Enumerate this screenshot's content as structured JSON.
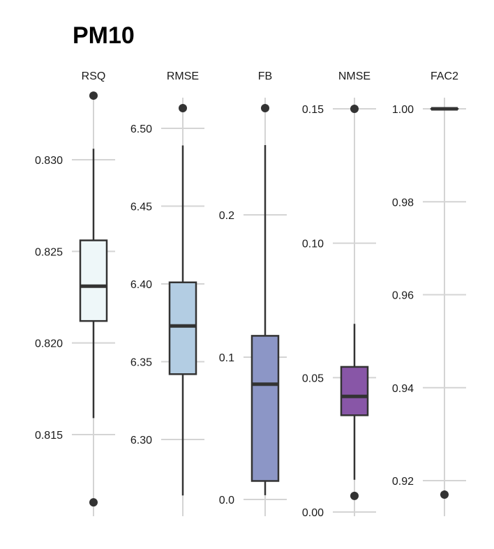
{
  "chart_data": {
    "type": "boxplot",
    "title": "PM10",
    "panels": [
      {
        "name": "RSQ",
        "ticks": [
          0.815,
          0.82,
          0.825,
          0.83
        ],
        "tick_labels": [
          "0.815",
          "0.820",
          "0.825",
          "0.830"
        ],
        "whisker_low": 0.8159,
        "q1": 0.8212,
        "median": 0.8231,
        "q3": 0.8256,
        "whisker_high": 0.8306,
        "outliers": [
          0.8113,
          0.8335
        ],
        "fill": "#eef7f9"
      },
      {
        "name": "RMSE",
        "ticks": [
          6.3,
          6.35,
          6.4,
          6.45,
          6.5
        ],
        "tick_labels": [
          "6.30",
          "6.35",
          "6.40",
          "6.45",
          "6.50"
        ],
        "whisker_low": 6.264,
        "q1": 6.342,
        "median": 6.373,
        "q3": 6.401,
        "whisker_high": 6.489,
        "outliers": [
          6.513
        ],
        "fill": "#b3cde3"
      },
      {
        "name": "FB",
        "ticks": [
          0.0,
          0.1,
          0.2
        ],
        "tick_labels": [
          "0.0",
          "0.1",
          "0.2"
        ],
        "whisker_low": 0.003,
        "q1": 0.013,
        "median": 0.081,
        "q3": 0.115,
        "whisker_high": 0.249,
        "outliers": [
          0.275
        ],
        "fill": "#8c96c6"
      },
      {
        "name": "NMSE",
        "ticks": [
          0.0,
          0.05,
          0.1,
          0.15
        ],
        "tick_labels": [
          "0.00",
          "0.05",
          "0.10",
          "0.15"
        ],
        "whisker_low": 0.012,
        "q1": 0.036,
        "median": 0.043,
        "q3": 0.054,
        "whisker_high": 0.07,
        "outliers": [
          0.006,
          0.15
        ],
        "fill": "#8856a7"
      },
      {
        "name": "FAC2",
        "ticks": [
          0.92,
          0.94,
          0.96,
          0.98,
          1.0
        ],
        "tick_labels": [
          "0.92",
          "0.94",
          "0.96",
          "0.98",
          "1.00"
        ],
        "whisker_low": 1.0,
        "q1": 1.0,
        "median": 1.0,
        "q3": 1.0,
        "whisker_high": 1.0,
        "outliers": [
          0.917
        ],
        "fill": "#810f7c"
      }
    ],
    "grid": true,
    "legend": "none"
  }
}
